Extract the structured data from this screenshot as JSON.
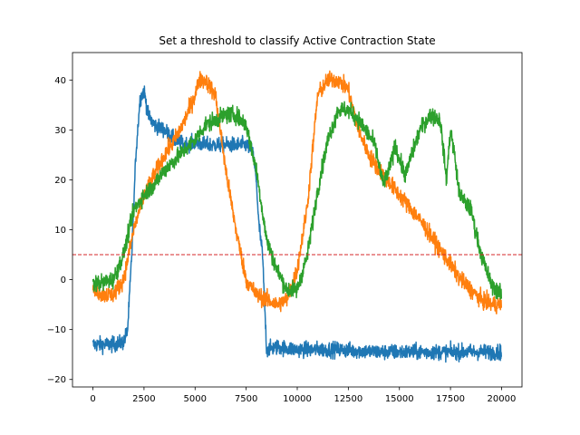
{
  "chart_data": {
    "type": "line",
    "title": "Set a threshold to classify Active Contraction State",
    "xlabel": "",
    "ylabel": "",
    "xlim": [
      -1000,
      21000
    ],
    "ylim": [
      -21.5,
      45.5
    ],
    "xticks": [
      0,
      2500,
      5000,
      7500,
      10000,
      12500,
      15000,
      17500,
      20000
    ],
    "xtick_labels": [
      "0",
      "2500",
      "5000",
      "7500",
      "10000",
      "12500",
      "15000",
      "17500",
      "20000"
    ],
    "yticks": [
      -20,
      -10,
      0,
      10,
      20,
      30,
      40
    ],
    "ytick_labels": [
      "−20",
      "−10",
      "0",
      "10",
      "20",
      "30",
      "40"
    ],
    "grid": false,
    "legend": "none",
    "threshold": {
      "y": 5,
      "color": "#d62728",
      "style": "dashed"
    },
    "series": [
      {
        "color": "#1f77b4",
        "noise": 1.1,
        "x": [
          0,
          1000,
          1500,
          1700,
          1900,
          2100,
          2300,
          2500,
          2700,
          3000,
          3500,
          4000,
          4500,
          5000,
          5500,
          6000,
          6500,
          7000,
          7500,
          7800,
          8000,
          8100,
          8300,
          8500,
          9000,
          10000,
          12000,
          14000,
          16000,
          18000,
          20000
        ],
        "y": [
          -13,
          -13,
          -12.5,
          -10,
          5,
          25,
          36,
          38,
          33,
          31,
          30,
          28,
          27,
          27.5,
          27,
          27,
          27,
          27,
          27,
          26,
          20,
          12,
          5,
          -14,
          -13.5,
          -14,
          -14,
          -14.5,
          -14.5,
          -14.5,
          -14.5
        ]
      },
      {
        "color": "#ff7f0e",
        "noise": 1.2,
        "x": [
          0,
          500,
          1000,
          1500,
          2000,
          2500,
          3000,
          3500,
          4000,
          4500,
          5000,
          5200,
          5500,
          6000,
          6500,
          7000,
          7500,
          8000,
          8500,
          9000,
          9500,
          10000,
          10500,
          11000,
          11500,
          12000,
          12500,
          13000,
          13500,
          14000,
          15000,
          16000,
          17000,
          17500,
          18000,
          18500,
          19000,
          19500,
          20000
        ],
        "y": [
          -2,
          -3,
          -3,
          0,
          10,
          17,
          21,
          25,
          28,
          32,
          37,
          40,
          40,
          37,
          22,
          10,
          0,
          -3,
          -4,
          -5,
          -4,
          2,
          15,
          37,
          40,
          40,
          38,
          30,
          25,
          22,
          17,
          12,
          6,
          3,
          0,
          -2,
          -4,
          -5,
          -5
        ]
      },
      {
        "color": "#2ca02c",
        "noise": 1.2,
        "x": [
          0,
          1000,
          1500,
          2000,
          2500,
          3000,
          3500,
          4000,
          4500,
          5000,
          5500,
          6000,
          6500,
          7000,
          7500,
          8000,
          8500,
          9000,
          9500,
          10000,
          10500,
          11000,
          11500,
          12000,
          12500,
          13000,
          13500,
          13800,
          14200,
          14500,
          14800,
          15000,
          15300,
          15600,
          16000,
          16500,
          17000,
          17300,
          17500,
          17700,
          17900,
          18100,
          18500,
          19000,
          19500,
          20000
        ],
        "y": [
          -1,
          0,
          5,
          14,
          17,
          19,
          22,
          24,
          26,
          28,
          31,
          32,
          33,
          33,
          31,
          22,
          8,
          2,
          -2,
          -2,
          5,
          18,
          28,
          34,
          34,
          32,
          29,
          27,
          19,
          22,
          27,
          24,
          21,
          25,
          30,
          33,
          32,
          20,
          30,
          25,
          18,
          16,
          14,
          5,
          -1,
          -3
        ]
      }
    ]
  }
}
